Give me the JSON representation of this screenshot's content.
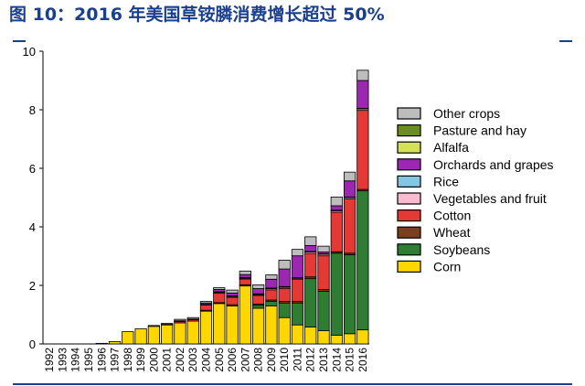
{
  "title": "图 10：2016 年美国草铵膦消费增长超过 50%",
  "chart_data": {
    "type": "bar",
    "stacked": true,
    "categories": [
      "1992",
      "1993",
      "1994",
      "1995",
      "1996",
      "1997",
      "1998",
      "1999",
      "2000",
      "2001",
      "2002",
      "2003",
      "2004",
      "2005",
      "2006",
      "2007",
      "2008",
      "2009",
      "2010",
      "2011",
      "2012",
      "2013",
      "2014",
      "2015",
      "2016"
    ],
    "ylim": [
      0,
      10
    ],
    "yticks": [
      0,
      2,
      4,
      6,
      8,
      10
    ],
    "xlabel": "",
    "ylabel": "",
    "legend_position": "right",
    "series": [
      {
        "name": "Corn",
        "color": "#ffd700",
        "values": [
          0,
          0,
          0,
          0,
          0.02,
          0.08,
          0.42,
          0.52,
          0.6,
          0.65,
          0.72,
          0.78,
          1.12,
          1.38,
          1.3,
          1.98,
          1.22,
          1.3,
          0.9,
          0.65,
          0.58,
          0.45,
          0.3,
          0.35,
          0.48
        ]
      },
      {
        "name": "Soybeans",
        "color": "#2e7d32",
        "values": [
          0,
          0,
          0,
          0,
          0,
          0,
          0,
          0,
          0,
          0,
          0,
          0,
          0,
          0,
          0,
          0,
          0.1,
          0.15,
          0.5,
          0.75,
          1.65,
          1.35,
          2.8,
          2.7,
          4.75
        ]
      },
      {
        "name": "Wheat",
        "color": "#7b3f1e",
        "values": [
          0,
          0,
          0,
          0,
          0,
          0,
          0,
          0,
          0,
          0,
          0,
          0,
          0.03,
          0.03,
          0.04,
          0.04,
          0.04,
          0.05,
          0.05,
          0.05,
          0.06,
          0.06,
          0.05,
          0.05,
          0.05
        ]
      },
      {
        "name": "Cotton",
        "color": "#e53935",
        "values": [
          0,
          0,
          0,
          0,
          0,
          0,
          0,
          0,
          0,
          0.02,
          0.05,
          0.05,
          0.18,
          0.32,
          0.25,
          0.2,
          0.3,
          0.35,
          0.45,
          0.75,
          0.8,
          1.15,
          1.35,
          1.85,
          2.7
        ]
      },
      {
        "name": "Vegetables and fruit",
        "color": "#f8bbd0",
        "values": [
          0,
          0,
          0,
          0,
          0,
          0,
          0,
          0,
          0,
          0,
          0,
          0,
          0.02,
          0.03,
          0.03,
          0.03,
          0.03,
          0.04,
          0.04,
          0.04,
          0.05,
          0.05,
          0.05,
          0.05,
          0.05
        ]
      },
      {
        "name": "Rice",
        "color": "#7ec8e3",
        "values": [
          0,
          0,
          0,
          0,
          0,
          0,
          0,
          0,
          0,
          0,
          0,
          0,
          0,
          0.02,
          0.02,
          0.02,
          0.02,
          0.02,
          0.02,
          0.02,
          0.02,
          0.02,
          0.02,
          0.02,
          0.02
        ]
      },
      {
        "name": "Orchards and grapes",
        "color": "#9c27b0",
        "values": [
          0,
          0,
          0,
          0,
          0,
          0,
          0,
          0,
          0,
          0,
          0.02,
          0.02,
          0.05,
          0.08,
          0.1,
          0.1,
          0.18,
          0.3,
          0.6,
          0.75,
          0.2,
          0.06,
          0.15,
          0.55,
          0.95
        ]
      },
      {
        "name": "Alfalfa",
        "color": "#d4e157",
        "values": [
          0,
          0,
          0,
          0,
          0,
          0,
          0,
          0,
          0,
          0,
          0,
          0,
          0,
          0,
          0,
          0,
          0,
          0,
          0,
          0,
          0,
          0,
          0,
          0,
          0
        ]
      },
      {
        "name": "Pasture and hay",
        "color": "#6b8e23",
        "values": [
          0,
          0,
          0,
          0,
          0,
          0,
          0,
          0,
          0,
          0,
          0,
          0,
          0,
          0,
          0,
          0,
          0,
          0,
          0,
          0,
          0,
          0,
          0,
          0,
          0
        ]
      },
      {
        "name": "Other crops",
        "color": "#bdbdbd",
        "values": [
          0,
          0,
          0,
          0,
          0,
          0,
          0,
          0,
          0.03,
          0.03,
          0.05,
          0.05,
          0.05,
          0.06,
          0.1,
          0.12,
          0.13,
          0.15,
          0.3,
          0.22,
          0.3,
          0.2,
          0.3,
          0.3,
          0.35
        ]
      }
    ],
    "legend_order": [
      "Other crops",
      "Pasture and hay",
      "Alfalfa",
      "Orchards and grapes",
      "Rice",
      "Vegetables and fruit",
      "Cotton",
      "Wheat",
      "Soybeans",
      "Corn"
    ]
  }
}
